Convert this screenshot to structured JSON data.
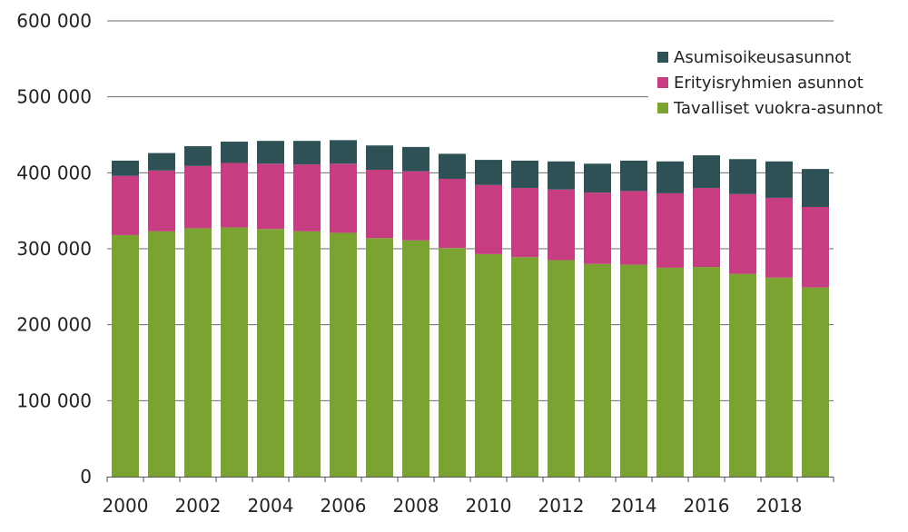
{
  "chart_data": {
    "type": "bar",
    "stacked": true,
    "title": "",
    "xlabel": "",
    "ylabel": "",
    "ylim": [
      0,
      600000
    ],
    "y_ticks": [
      0,
      100000,
      200000,
      300000,
      400000,
      500000,
      600000
    ],
    "y_tick_labels": [
      "0",
      "100 000",
      "200 000",
      "300 000",
      "400 000",
      "500 000",
      "600 000"
    ],
    "categories": [
      "2000",
      "2001",
      "2002",
      "2003",
      "2004",
      "2005",
      "2006",
      "2007",
      "2008",
      "2009",
      "2010",
      "2011",
      "2012",
      "2013",
      "2014",
      "2015",
      "2016",
      "2017",
      "2018",
      "2019"
    ],
    "x_tick_labels": [
      "2000",
      "2002",
      "2004",
      "2006",
      "2008",
      "2010",
      "2012",
      "2014",
      "2016",
      "2018"
    ],
    "grid": "horizontal",
    "legend_position": "top-right",
    "series": [
      {
        "name": "Tavalliset vuokra-asunnot",
        "color": "#7aa332",
        "values": [
          318000,
          323000,
          327000,
          328000,
          326000,
          323000,
          321000,
          314000,
          311000,
          301000,
          293000,
          289000,
          285000,
          280000,
          279000,
          275000,
          276000,
          267000,
          262000,
          249000
        ]
      },
      {
        "name": "Erityisryhmien asunnot",
        "color": "#c63d82",
        "values": [
          78000,
          80000,
          82000,
          85000,
          86000,
          88000,
          91000,
          90000,
          91000,
          91000,
          91000,
          91000,
          93000,
          94000,
          97000,
          98000,
          104000,
          105000,
          105000,
          106000
        ]
      },
      {
        "name": "Asumisoikeusasunnot",
        "color": "#2e5155",
        "values": [
          20000,
          23000,
          26000,
          28000,
          30000,
          31000,
          31000,
          32000,
          32000,
          33000,
          33000,
          36000,
          37000,
          38000,
          40000,
          42000,
          43000,
          46000,
          48000,
          50000
        ]
      }
    ],
    "legend_order": [
      "Asumisoikeusasunnot",
      "Erityisryhmien asunnot",
      "Tavalliset vuokra-asunnot"
    ]
  }
}
